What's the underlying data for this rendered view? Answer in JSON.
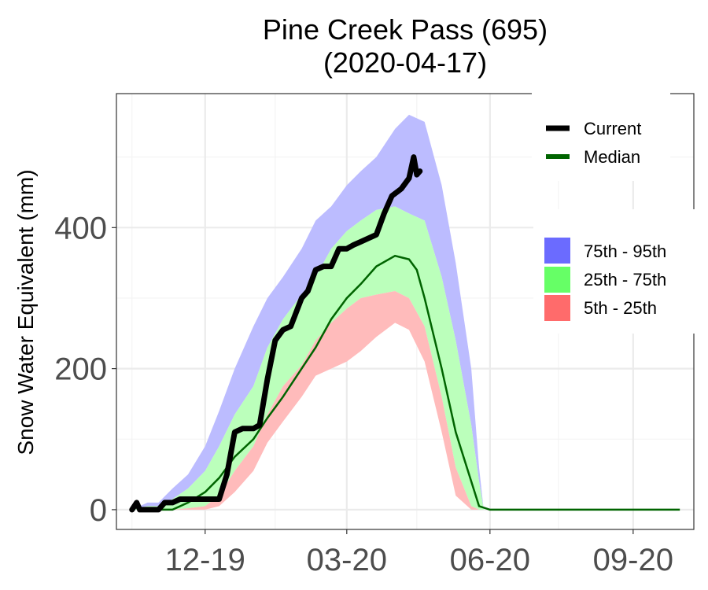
{
  "chart_data": {
    "type": "area",
    "title": [
      "Pine Creek Pass (695)",
      "(2020-04-17)"
    ],
    "ylabel": "Snow Water Equivalent (mm)",
    "xlabel": "",
    "x_ticks": [
      "12-19",
      "03-20",
      "06-20",
      "09-20"
    ],
    "x_tick_dates": [
      "2019-12-01",
      "2020-03-01",
      "2020-06-01",
      "2020-09-01"
    ],
    "y_ticks": [
      0,
      200,
      400
    ],
    "x_range": [
      "2019-10-05",
      "2020-10-10"
    ],
    "ylim": [
      -28,
      590
    ],
    "grid": true,
    "legend_placement": "right",
    "legend_lines": [
      {
        "name": "Current",
        "color": "#000000"
      },
      {
        "name": "Median",
        "color": "#006400"
      }
    ],
    "legend_bands": [
      {
        "name": "75th - 95th",
        "color": "#6b6bff"
      },
      {
        "name": "25th - 75th",
        "color": "#66ff66"
      },
      {
        "name": "5th - 25th",
        "color": "#ff6b6b"
      }
    ],
    "band_colors": {
      "p75_95": "#bcbcff",
      "p25_75": "#bbffbb",
      "p5_25": "#ffbbbb"
    },
    "band_dates": [
      "2019-10-15",
      "2019-10-25",
      "2019-11-01",
      "2019-11-10",
      "2019-11-20",
      "2019-12-01",
      "2019-12-10",
      "2019-12-20",
      "2020-01-01",
      "2020-01-10",
      "2020-01-20",
      "2020-02-01",
      "2020-02-10",
      "2020-02-20",
      "2020-03-01",
      "2020-03-10",
      "2020-03-20",
      "2020-04-01",
      "2020-04-10",
      "2020-04-20",
      "2020-05-01",
      "2020-05-10",
      "2020-05-20",
      "2020-05-25",
      "2020-05-28"
    ],
    "p5": [
      0,
      0,
      0,
      0,
      0,
      0,
      5,
      25,
      55,
      95,
      125,
      160,
      190,
      200,
      210,
      225,
      245,
      265,
      255,
      210,
      110,
      20,
      0,
      0,
      0
    ],
    "p25": [
      0,
      0,
      0,
      0,
      2,
      5,
      20,
      55,
      90,
      135,
      175,
      205,
      240,
      265,
      285,
      300,
      305,
      310,
      300,
      260,
      160,
      60,
      5,
      0,
      0
    ],
    "p75": [
      0,
      5,
      5,
      15,
      30,
      55,
      90,
      135,
      175,
      230,
      270,
      305,
      330,
      370,
      395,
      410,
      425,
      430,
      420,
      410,
      330,
      240,
      120,
      40,
      0
    ],
    "p95": [
      0,
      10,
      10,
      30,
      50,
      90,
      140,
      200,
      260,
      300,
      330,
      370,
      410,
      430,
      460,
      480,
      500,
      540,
      560,
      550,
      460,
      350,
      200,
      60,
      0
    ],
    "median": {
      "name": "Median",
      "color": "#006400",
      "x": [
        "2019-10-20",
        "2019-11-01",
        "2019-11-10",
        "2019-11-20",
        "2019-12-01",
        "2019-12-10",
        "2019-12-20",
        "2020-01-01",
        "2020-01-10",
        "2020-01-20",
        "2020-02-01",
        "2020-02-10",
        "2020-02-20",
        "2020-03-01",
        "2020-03-10",
        "2020-03-20",
        "2020-04-01",
        "2020-04-10",
        "2020-04-15",
        "2020-04-20",
        "2020-05-01",
        "2020-05-10",
        "2020-05-20",
        "2020-05-25",
        "2020-06-01",
        "2020-10-01"
      ],
      "y": [
        0,
        0,
        0,
        10,
        25,
        45,
        75,
        100,
        130,
        160,
        200,
        230,
        270,
        300,
        320,
        345,
        360,
        355,
        340,
        300,
        200,
        110,
        40,
        5,
        0,
        0
      ]
    },
    "current": {
      "name": "Current",
      "color": "#000000",
      "x": [
        "2019-10-15",
        "2019-10-18",
        "2019-10-20",
        "2019-10-25",
        "2019-11-01",
        "2019-11-05",
        "2019-11-10",
        "2019-11-15",
        "2019-11-20",
        "2019-12-01",
        "2019-12-05",
        "2019-12-10",
        "2019-12-15",
        "2019-12-20",
        "2019-12-25",
        "2020-01-01",
        "2020-01-05",
        "2020-01-10",
        "2020-01-15",
        "2020-01-20",
        "2020-01-25",
        "2020-02-01",
        "2020-02-05",
        "2020-02-10",
        "2020-02-15",
        "2020-02-20",
        "2020-02-25",
        "2020-03-01",
        "2020-03-05",
        "2020-03-10",
        "2020-03-15",
        "2020-03-20",
        "2020-03-25",
        "2020-03-30",
        "2020-04-05",
        "2020-04-10",
        "2020-04-13",
        "2020-04-15",
        "2020-04-17"
      ],
      "y": [
        0,
        10,
        0,
        0,
        0,
        10,
        10,
        15,
        15,
        15,
        15,
        15,
        50,
        110,
        115,
        115,
        120,
        185,
        240,
        255,
        260,
        300,
        310,
        340,
        345,
        345,
        370,
        370,
        375,
        380,
        385,
        390,
        420,
        445,
        455,
        470,
        500,
        475,
        480
      ]
    }
  }
}
